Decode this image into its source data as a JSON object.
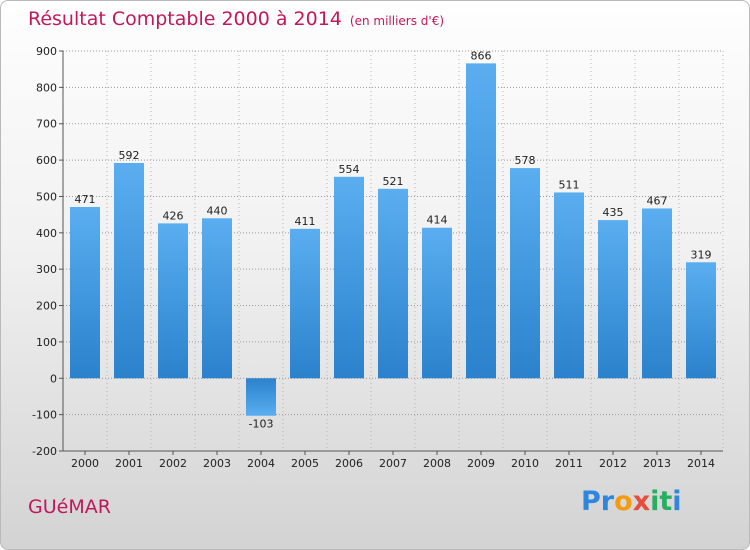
{
  "title": "Résultat Comptable 2000 à 2014",
  "subtitle": "(en milliers d'€)",
  "town": "GUéMAR",
  "logo": {
    "letters": [
      "P",
      "r",
      "o",
      "x",
      "i",
      "t",
      "i"
    ],
    "colors": [
      "#2e86de",
      "#2e86de",
      "#f39c12",
      "#e74c3c",
      "#27ae60",
      "#27ae60",
      "#2e86de"
    ]
  },
  "colors": {
    "title": "#c2185b",
    "bar": "#3f9be0",
    "bar_dark": "#1f78c2",
    "grid": "#9a9a9a"
  },
  "chart_data": {
    "type": "bar",
    "title": "Résultat Comptable 2000 à 2014",
    "ylabel": "en milliers d'€",
    "xlabel": "",
    "categories": [
      "2000",
      "2001",
      "2002",
      "2003",
      "2004",
      "2005",
      "2006",
      "2007",
      "2008",
      "2009",
      "2010",
      "2011",
      "2012",
      "2013",
      "2014"
    ],
    "values": [
      471,
      592,
      426,
      440,
      -103,
      411,
      554,
      521,
      414,
      866,
      578,
      511,
      435,
      467,
      319
    ],
    "value_labels": [
      "471",
      "592",
      "426",
      "440",
      "-103",
      "411",
      "554",
      "521",
      "414",
      "866",
      "578",
      "511",
      "435",
      "467",
      "319"
    ],
    "ylim": [
      -200,
      900
    ],
    "yticks": [
      -200,
      -100,
      0,
      100,
      200,
      300,
      400,
      500,
      600,
      700,
      800,
      900
    ],
    "ytick_labels": [
      "-200",
      "-100",
      "0",
      "100",
      "200",
      "300",
      "400",
      "500",
      "600",
      "700",
      "800",
      "900"
    ],
    "grid": true
  }
}
